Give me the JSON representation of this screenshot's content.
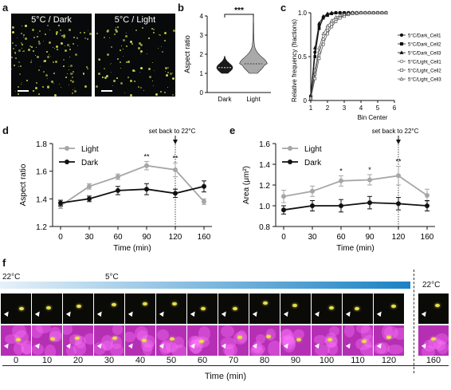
{
  "panels": {
    "a": {
      "letter": "a",
      "image_titles": [
        "5°C / Dark",
        "5°C / Light"
      ]
    },
    "b": {
      "letter": "b"
    },
    "c": {
      "letter": "c"
    },
    "d": {
      "letter": "d"
    },
    "e": {
      "letter": "e"
    },
    "f": {
      "letter": "f"
    }
  },
  "panel_f": {
    "temp_start": "22°C",
    "temp_cold": "5°C",
    "temp_end": "22°C",
    "time_labels": [
      "0",
      "10",
      "20",
      "30",
      "40",
      "50",
      "60",
      "70",
      "80",
      "90",
      "100",
      "110",
      "120",
      "160"
    ],
    "xlabel": "Time (min)",
    "colors": {
      "gradient_start": "#e6f1fa",
      "gradient_end": "#1b82c4",
      "merge": "#b52fb5",
      "yellow": "#e8e04a"
    }
  },
  "chart_data": [
    {
      "id": "b",
      "type": "violin",
      "categories": [
        "Dark",
        "Light"
      ],
      "ylabel": "Aspect ratio",
      "ylim": [
        0,
        4
      ],
      "yticks": [
        0,
        1,
        2,
        3,
        4
      ],
      "significance": "***",
      "medians": [
        1.3,
        1.5
      ],
      "ranges": [
        [
          1.0,
          1.9
        ],
        [
          1.0,
          4.1
        ]
      ],
      "colors": {
        "Dark": "#1a1a1a",
        "Light": "#a9a9a9"
      }
    },
    {
      "id": "c",
      "type": "line",
      "xlabel": "Bin Center",
      "ylabel": "Relative frequency (fractions)",
      "xlim": [
        1,
        6
      ],
      "ylim": [
        0,
        1.0
      ],
      "xticks": [
        1,
        2,
        3,
        4,
        5,
        6
      ],
      "yticks": [
        0,
        0.5,
        1.0
      ],
      "x": [
        1.0,
        1.25,
        1.5,
        1.75,
        2.0,
        2.25,
        2.5,
        2.75,
        3.0,
        3.25,
        3.5,
        3.75,
        4.0,
        4.25,
        4.5,
        4.75,
        5.0,
        5.25,
        5.5
      ],
      "series": [
        {
          "name": "5°C/Dark_Cell1",
          "marker": "filled-circle",
          "values": [
            0.05,
            0.55,
            0.85,
            0.95,
            0.98,
            0.99,
            1,
            1,
            1,
            1,
            1,
            1,
            1,
            1,
            1,
            1,
            1,
            1,
            1
          ]
        },
        {
          "name": "5°C/Dark_Cell2",
          "marker": "filled-square",
          "values": [
            0.04,
            0.5,
            0.82,
            0.94,
            0.97,
            0.99,
            1,
            1,
            1,
            1,
            1,
            1,
            1,
            1,
            1,
            1,
            1,
            1,
            1
          ]
        },
        {
          "name": "5°C/Dark_Cell3",
          "marker": "filled-triangle",
          "values": [
            0.06,
            0.6,
            0.88,
            0.96,
            0.99,
            1,
            1,
            1,
            1,
            1,
            1,
            1,
            1,
            1,
            1,
            1,
            1,
            1,
            1
          ]
        },
        {
          "name": "5°C/Light_Cell1",
          "marker": "open-circle",
          "values": [
            0.02,
            0.3,
            0.55,
            0.7,
            0.8,
            0.87,
            0.92,
            0.95,
            0.97,
            0.98,
            0.99,
            1,
            1,
            1,
            1,
            1,
            1,
            1,
            1
          ]
        },
        {
          "name": "5°C/Light_Cell2",
          "marker": "open-square",
          "values": [
            0.02,
            0.25,
            0.48,
            0.64,
            0.76,
            0.84,
            0.9,
            0.94,
            0.96,
            0.98,
            0.99,
            0.99,
            1,
            1,
            1,
            1,
            1,
            1,
            1
          ]
        },
        {
          "name": "5°C/Light_Cell3",
          "marker": "open-triangle",
          "values": [
            0.03,
            0.35,
            0.6,
            0.76,
            0.85,
            0.91,
            0.95,
            0.97,
            0.98,
            0.99,
            1,
            1,
            1,
            1,
            1,
            1,
            1,
            1,
            1
          ]
        }
      ]
    },
    {
      "id": "d",
      "type": "line",
      "xlabel": "Time (min)",
      "ylabel": "Aspect ratio",
      "categories": [
        "0",
        "30",
        "60",
        "90",
        "120",
        "160"
      ],
      "ylim": [
        1.2,
        1.8
      ],
      "yticks": [
        1.2,
        1.4,
        1.6,
        1.8
      ],
      "annotation": "set back to 22°C",
      "legend": "top-left",
      "significance": [
        "",
        "",
        "",
        "**",
        "**",
        ""
      ],
      "series": [
        {
          "name": "Light",
          "color": "#a6a6a6",
          "values": [
            1.35,
            1.49,
            1.56,
            1.64,
            1.61,
            1.38
          ],
          "errors": [
            0.02,
            0.02,
            0.02,
            0.03,
            0.05,
            0.02
          ]
        },
        {
          "name": "Dark",
          "color": "#111111",
          "values": [
            1.37,
            1.4,
            1.46,
            1.47,
            1.44,
            1.49
          ],
          "errors": [
            0.02,
            0.02,
            0.03,
            0.04,
            0.03,
            0.04
          ]
        }
      ]
    },
    {
      "id": "e",
      "type": "line",
      "xlabel": "Time (min)",
      "ylabel": "Area (μm²)",
      "categories": [
        "0",
        "30",
        "60",
        "90",
        "120",
        "160"
      ],
      "ylim": [
        0.8,
        1.6
      ],
      "yticks": [
        0.8,
        1.0,
        1.2,
        1.4,
        1.6
      ],
      "annotation": "set back to 22°C",
      "legend": "top-left",
      "significance": [
        "",
        "",
        "*",
        "*",
        "**",
        ""
      ],
      "series": [
        {
          "name": "Light",
          "color": "#a6a6a6",
          "values": [
            1.09,
            1.14,
            1.24,
            1.25,
            1.29,
            1.1
          ],
          "errors": [
            0.06,
            0.05,
            0.05,
            0.05,
            0.09,
            0.06
          ]
        },
        {
          "name": "Dark",
          "color": "#111111",
          "values": [
            0.96,
            1.0,
            1.0,
            1.03,
            1.02,
            1.0
          ],
          "errors": [
            0.04,
            0.05,
            0.06,
            0.06,
            0.06,
            0.05
          ]
        }
      ]
    }
  ]
}
